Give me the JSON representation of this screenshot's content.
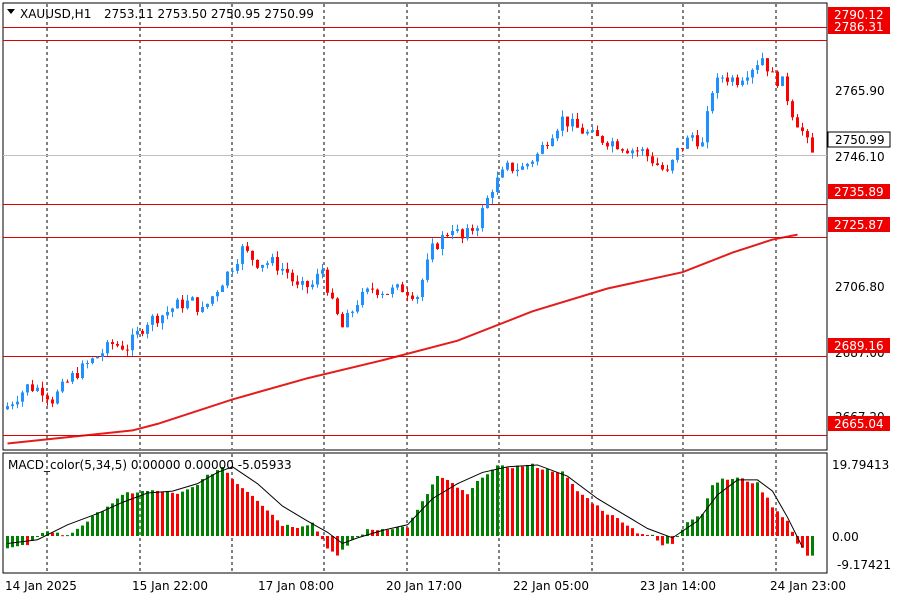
{
  "header": {
    "symbol": "XAUUSD,H1",
    "ohlc": "2753.11 2753.50 2750.95 2750.99",
    "indicator": "MACD_color(5,34,5) 0.00000 0.00000 -5.05933"
  },
  "colors": {
    "bull": "#1e90ff",
    "bear": "#ff0000",
    "ma": "#e51c1c",
    "hline": "#e00000",
    "macd_up": "#008000",
    "macd_down": "#ff0000",
    "grid": "#000000"
  },
  "chart_data": [
    {
      "type": "candlestick",
      "title": "XAUUSD,H1",
      "price_axis_ticks": [
        "2765.90",
        "2746.10",
        "2706.80",
        "2687.00",
        "2667.20"
      ],
      "price_tags": [
        {
          "label": "2790.12",
          "value": 2790.12,
          "kind": "level"
        },
        {
          "label": "2786.31",
          "value": 2786.31,
          "kind": "level"
        },
        {
          "label": "2750.99",
          "value": 2750.99,
          "kind": "current"
        },
        {
          "label": "2735.89",
          "value": 2735.89,
          "kind": "level"
        },
        {
          "label": "2725.87",
          "value": 2725.87,
          "kind": "level"
        },
        {
          "label": "2689.16",
          "value": 2689.16,
          "kind": "level"
        },
        {
          "label": "2665.04",
          "value": 2665.04,
          "kind": "level"
        }
      ],
      "time_labels": [
        "14 Jan 2025",
        "15 Jan 22:00",
        "17 Jan 08:00",
        "20 Jan 17:00",
        "22 Jan 05:00",
        "23 Jan 14:00",
        "24 Jan 23:00"
      ],
      "ylim": [
        2660.5,
        2797.5
      ],
      "close_path": [
        [
          0,
          2674
        ],
        [
          4,
          2680
        ],
        [
          7,
          2679
        ],
        [
          9,
          2676
        ],
        [
          13,
          2683
        ],
        [
          17,
          2688
        ],
        [
          21,
          2693
        ],
        [
          24,
          2692
        ],
        [
          28,
          2700
        ],
        [
          31,
          2702
        ],
        [
          34,
          2705
        ],
        [
          37,
          2706
        ],
        [
          39,
          2703
        ],
        [
          42,
          2710
        ],
        [
          45,
          2717
        ],
        [
          47,
          2722
        ],
        [
          50,
          2718
        ],
        [
          53,
          2718
        ],
        [
          56,
          2715
        ],
        [
          58,
          2710
        ],
        [
          61,
          2711
        ],
        [
          63,
          2716
        ],
        [
          65,
          2705
        ],
        [
          67,
          2698
        ],
        [
          70,
          2706
        ],
        [
          73,
          2710
        ],
        [
          76,
          2709
        ],
        [
          79,
          2710
        ],
        [
          82,
          2708
        ],
        [
          85,
          2722
        ],
        [
          89,
          2729
        ],
        [
          91,
          2725
        ],
        [
          94,
          2730
        ],
        [
          97,
          2741
        ],
        [
          100,
          2747
        ],
        [
          103,
          2747
        ],
        [
          106,
          2751
        ],
        [
          109,
          2758
        ],
        [
          111,
          2762
        ],
        [
          114,
          2759
        ],
        [
          118,
          2756
        ],
        [
          121,
          2755
        ],
        [
          124,
          2753
        ],
        [
          127,
          2752
        ],
        [
          130,
          2748
        ],
        [
          132,
          2745
        ],
        [
          134,
          2752
        ],
        [
          137,
          2757
        ],
        [
          139,
          2754
        ],
        [
          141,
          2771
        ],
        [
          143,
          2775
        ],
        [
          146,
          2774
        ],
        [
          149,
          2778
        ],
        [
          151,
          2781
        ],
        [
          153,
          2775
        ],
        [
          155,
          2773
        ],
        [
          157,
          2764
        ],
        [
          159,
          2758
        ],
        [
          161,
          2751
        ]
      ],
      "ma_points": [
        [
          0,
          2662.5
        ],
        [
          25,
          2666.5
        ],
        [
          30,
          2668.5
        ],
        [
          45,
          2676
        ],
        [
          60,
          2682.5
        ],
        [
          75,
          2688
        ],
        [
          90,
          2694
        ],
        [
          105,
          2703
        ],
        [
          120,
          2710
        ],
        [
          135,
          2715
        ],
        [
          145,
          2721
        ],
        [
          153,
          2725
        ],
        [
          158,
          2726.5
        ]
      ]
    },
    {
      "type": "bar",
      "title": "MACD_color(5,34,5)",
      "values_label": "0.00000 0.00000 -5.05933",
      "axis_ticks": [
        "19.79413",
        "0.00",
        "-9.17421"
      ],
      "ylim": [
        -9.17421,
        19.79413
      ],
      "macd_path": [
        [
          0,
          -3
        ],
        [
          4,
          -2.5
        ],
        [
          8,
          1.5
        ],
        [
          12,
          0
        ],
        [
          16,
          4
        ],
        [
          20,
          8
        ],
        [
          24,
          11.5
        ],
        [
          28,
          12
        ],
        [
          31,
          12
        ],
        [
          34,
          11
        ],
        [
          37,
          13
        ],
        [
          40,
          16
        ],
        [
          43,
          18.5
        ],
        [
          46,
          14
        ],
        [
          49,
          11
        ],
        [
          52,
          7
        ],
        [
          55,
          3
        ],
        [
          58,
          2.5
        ],
        [
          61,
          3.5
        ],
        [
          64,
          -3
        ],
        [
          66,
          -5.5
        ],
        [
          69,
          -1
        ],
        [
          72,
          1.5
        ],
        [
          76,
          2
        ],
        [
          80,
          2.5
        ],
        [
          83,
          9
        ],
        [
          86,
          16
        ],
        [
          89,
          14
        ],
        [
          92,
          11
        ],
        [
          95,
          16
        ],
        [
          98,
          18.5
        ],
        [
          101,
          18.5
        ],
        [
          105,
          19
        ],
        [
          107,
          18
        ],
        [
          111,
          17
        ],
        [
          114,
          12
        ],
        [
          117,
          9
        ],
        [
          120,
          6
        ],
        [
          123,
          4
        ],
        [
          126,
          1
        ],
        [
          129,
          0
        ],
        [
          131,
          -2.5
        ],
        [
          133,
          -2
        ],
        [
          136,
          4
        ],
        [
          139,
          6
        ],
        [
          141,
          14
        ],
        [
          143,
          15
        ],
        [
          146,
          15.5
        ],
        [
          150,
          14
        ],
        [
          153,
          8
        ],
        [
          156,
          4
        ],
        [
          158,
          -2
        ],
        [
          160,
          -5
        ]
      ],
      "signal_path": [
        [
          0,
          -2
        ],
        [
          6,
          -1
        ],
        [
          12,
          3
        ],
        [
          18,
          6
        ],
        [
          23,
          9
        ],
        [
          28,
          11.5
        ],
        [
          33,
          12
        ],
        [
          38,
          14
        ],
        [
          42,
          17
        ],
        [
          45,
          18.5
        ],
        [
          50,
          14
        ],
        [
          55,
          8
        ],
        [
          60,
          4
        ],
        [
          64,
          1
        ],
        [
          67,
          -2
        ],
        [
          70,
          -0.5
        ],
        [
          75,
          1.5
        ],
        [
          80,
          3
        ],
        [
          85,
          10
        ],
        [
          90,
          14
        ],
        [
          95,
          17
        ],
        [
          100,
          18.5
        ],
        [
          106,
          19
        ],
        [
          112,
          16
        ],
        [
          118,
          10
        ],
        [
          123,
          6
        ],
        [
          128,
          2
        ],
        [
          133,
          -0.5
        ],
        [
          138,
          4
        ],
        [
          142,
          11
        ],
        [
          146,
          15
        ],
        [
          150,
          15
        ],
        [
          153,
          12
        ],
        [
          156,
          5
        ],
        [
          159,
          -3
        ]
      ]
    }
  ]
}
